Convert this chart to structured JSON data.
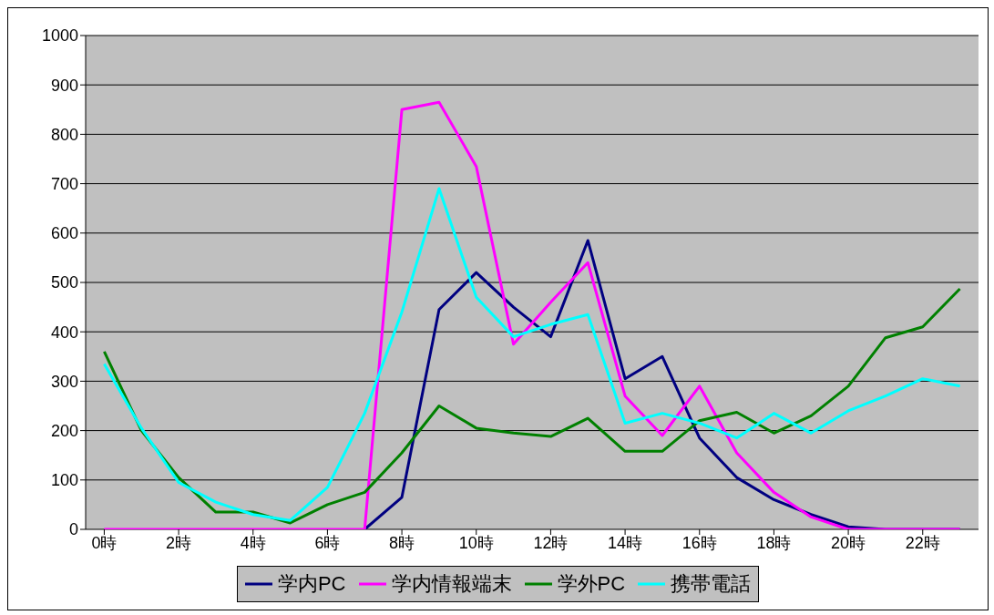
{
  "chart_data": {
    "type": "line",
    "categories": [
      "0時",
      null,
      "2時",
      null,
      "4時",
      null,
      "6時",
      null,
      "8時",
      null,
      "10時",
      null,
      "12時",
      null,
      "14時",
      null,
      "16時",
      null,
      "18時",
      null,
      "20時",
      null,
      "22時",
      null
    ],
    "ylim": [
      0,
      1000
    ],
    "yticks": [
      0,
      100,
      200,
      300,
      400,
      500,
      600,
      700,
      800,
      900,
      1000
    ],
    "grid": "y",
    "legend": "bottom",
    "marker": "none",
    "line_style": "solid",
    "series": [
      {
        "name": "学内PC",
        "color": "#000080",
        "values": [
          null,
          null,
          null,
          null,
          null,
          null,
          null,
          0,
          65,
          445,
          520,
          450,
          390,
          585,
          305,
          350,
          185,
          105,
          60,
          30,
          5,
          0,
          0,
          0
        ]
      },
      {
        "name": "学内情報端末",
        "color": "#ff00ff",
        "values": [
          0,
          0,
          0,
          0,
          0,
          0,
          0,
          0,
          850,
          865,
          735,
          375,
          460,
          540,
          270,
          190,
          290,
          155,
          75,
          25,
          0,
          0,
          0,
          0
        ]
      },
      {
        "name": "学外PC",
        "color": "#008000",
        "values": [
          360,
          200,
          105,
          35,
          35,
          13,
          50,
          75,
          155,
          250,
          205,
          195,
          188,
          225,
          158,
          158,
          220,
          237,
          195,
          230,
          290,
          388,
          410,
          487
        ]
      },
      {
        "name": "携帯電話",
        "color": "#00ffff",
        "values": [
          335,
          205,
          95,
          55,
          30,
          18,
          85,
          235,
          440,
          690,
          470,
          390,
          415,
          435,
          215,
          235,
          215,
          185,
          235,
          195,
          240,
          270,
          305,
          290
        ]
      }
    ]
  }
}
